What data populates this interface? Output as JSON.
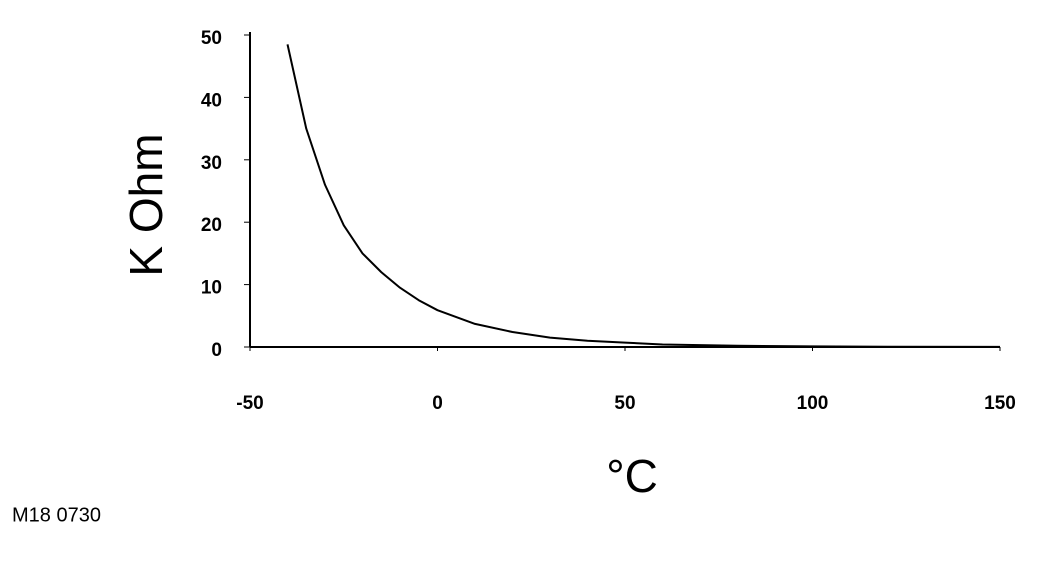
{
  "chart_data": {
    "type": "line",
    "y_label": "K Ohm",
    "x_label": "°C",
    "figure_id": "M18 0730",
    "x": [
      -40,
      -35,
      -30,
      -25,
      -20,
      -15,
      -10,
      -5,
      0,
      10,
      20,
      30,
      40,
      50,
      60,
      70,
      80,
      100,
      120,
      150
    ],
    "series": [
      {
        "color": "#000000",
        "values": [
          48.5,
          35,
          26,
          19.5,
          15,
          12,
          9.5,
          7.5,
          5.9,
          3.7,
          2.4,
          1.5,
          1.0,
          0.7,
          0.4,
          0.3,
          0.2,
          0.1,
          0.05,
          0.02
        ]
      }
    ],
    "xlim": [
      -50,
      150
    ],
    "xticks": [
      -50,
      0,
      50,
      100,
      150
    ],
    "ylim": [
      0,
      50
    ],
    "yticks": [
      0,
      10,
      20,
      30,
      40,
      50
    ],
    "grid": false
  }
}
